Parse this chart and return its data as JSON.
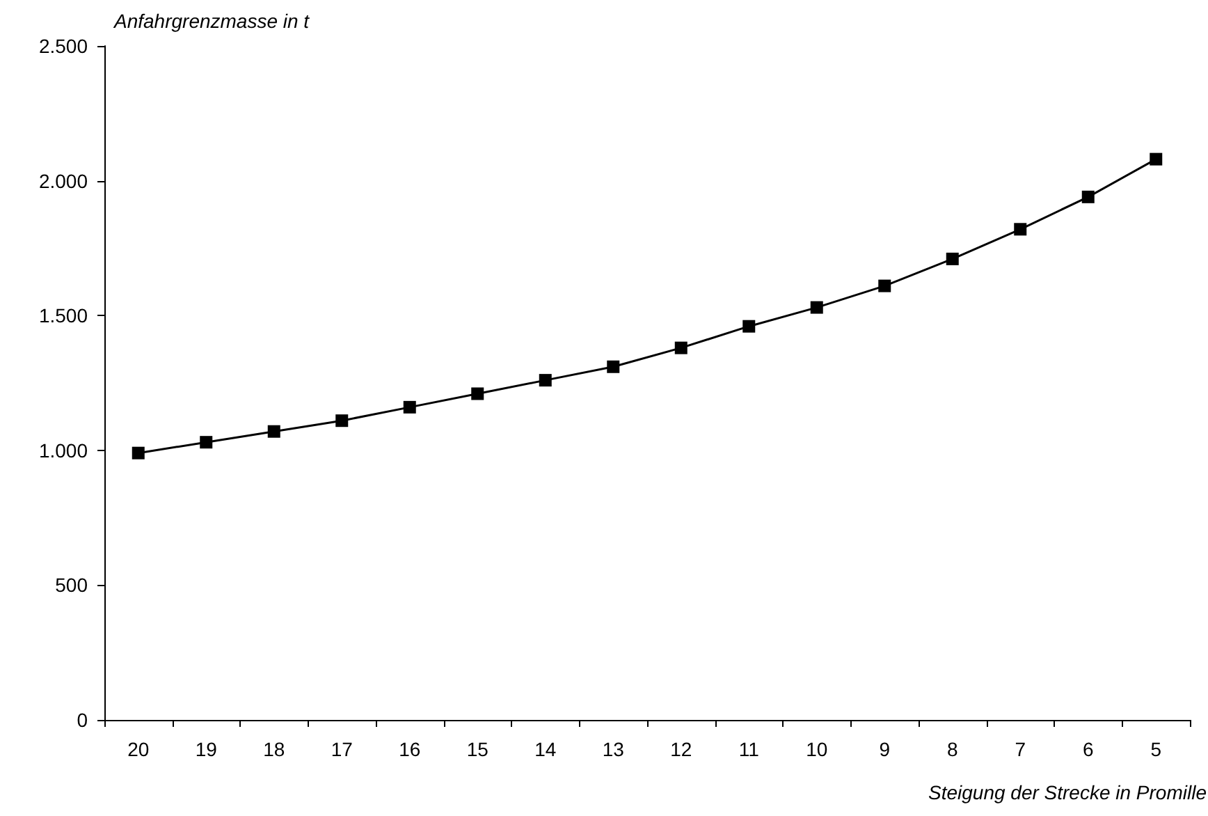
{
  "chart_data": {
    "type": "line",
    "xlabel": "Steigung der Strecke in Promille",
    "ylabel": "Anfahrgrenzmasse in t",
    "categories": [
      "20",
      "19",
      "18",
      "17",
      "16",
      "15",
      "14",
      "13",
      "12",
      "11",
      "10",
      "9",
      "8",
      "7",
      "6",
      "5"
    ],
    "series": [
      {
        "color": "#000000",
        "values": [
          990,
          1030,
          1070,
          1110,
          1160,
          1210,
          1260,
          1310,
          1380,
          1460,
          1530,
          1610,
          1710,
          1820,
          1940,
          2080
        ]
      }
    ],
    "ylim": [
      0,
      2500
    ],
    "yticks": [
      0,
      500,
      {
        "value": 1000,
        "label": "1.000"
      },
      {
        "value": 1500,
        "label": "1.500"
      },
      {
        "value": 2000,
        "label": "2.000"
      },
      {
        "value": 2500,
        "label": "2.500"
      }
    ],
    "grid": false,
    "marker": "square",
    "line_style": "solid"
  }
}
